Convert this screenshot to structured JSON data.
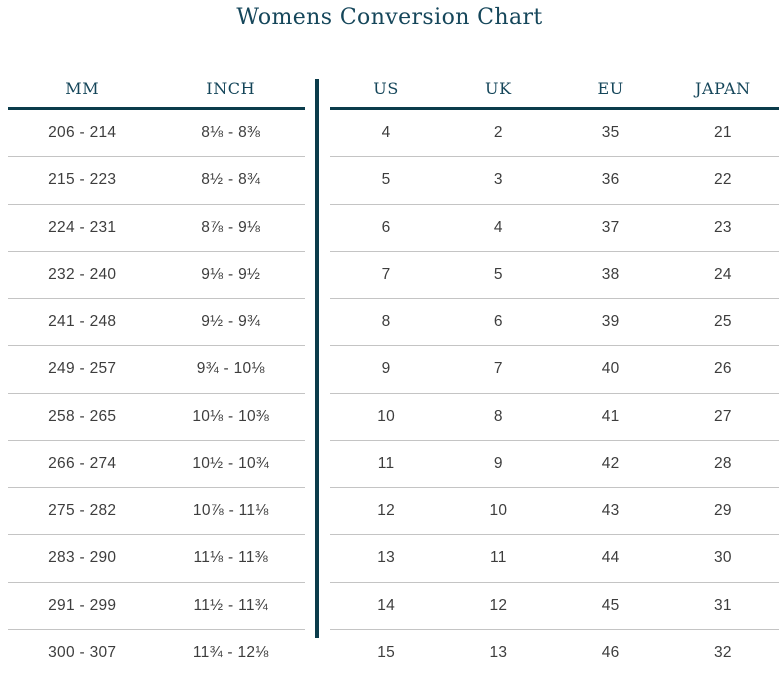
{
  "page_title": "Womens Conversion Chart",
  "colors": {
    "accent_line": "#0b3c4b",
    "heading_text": "#15465a",
    "body_text": "#3d3d3d",
    "row_divider": "#c4c4c4",
    "background": "#ffffff"
  },
  "chart_data": {
    "type": "table",
    "title": "Womens Conversion Chart",
    "columns": [
      "MM",
      "INCH",
      "US",
      "UK",
      "EU",
      "JAPAN"
    ],
    "left_section_columns": [
      "MM",
      "INCH"
    ],
    "right_section_columns": [
      "US",
      "UK",
      "EU",
      "JAPAN"
    ],
    "rows": [
      [
        "206 - 214",
        "8⅛ - 8⅜",
        "4",
        "2",
        "35",
        "21"
      ],
      [
        "215 - 223",
        "8½ - 8¾",
        "5",
        "3",
        "36",
        "22"
      ],
      [
        "224 - 231",
        "8⅞ - 9⅛",
        "6",
        "4",
        "37",
        "23"
      ],
      [
        "232 - 240",
        "9⅛ - 9½",
        "7",
        "5",
        "38",
        "24"
      ],
      [
        "241 - 248",
        "9½ - 9¾",
        "8",
        "6",
        "39",
        "25"
      ],
      [
        "249 - 257",
        "9¾ - 10⅛",
        "9",
        "7",
        "40",
        "26"
      ],
      [
        "258 - 265",
        "10⅛ - 10⅜",
        "10",
        "8",
        "41",
        "27"
      ],
      [
        "266 - 274",
        "10½ - 10¾",
        "11",
        "9",
        "42",
        "28"
      ],
      [
        "275 - 282",
        "10⅞ - 11⅛",
        "12",
        "10",
        "43",
        "29"
      ],
      [
        "283 - 290",
        "11⅛ - 11⅜",
        "13",
        "11",
        "44",
        "30"
      ],
      [
        "291 - 299",
        "11½ - 11¾",
        "14",
        "12",
        "45",
        "31"
      ],
      [
        "300 - 307",
        "11¾ - 12⅛",
        "15",
        "13",
        "46",
        "32"
      ]
    ]
  }
}
